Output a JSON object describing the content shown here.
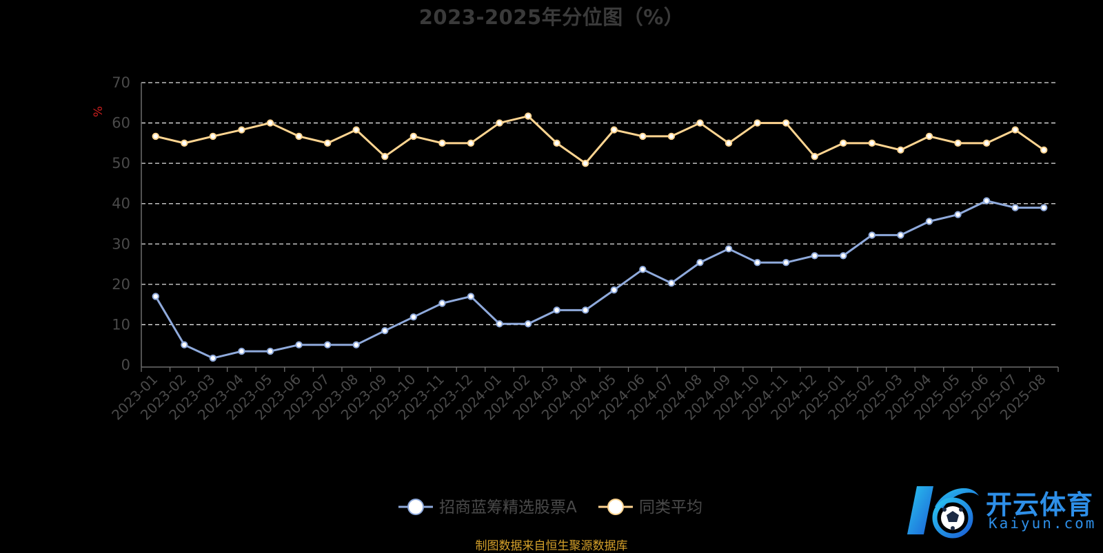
{
  "page": {
    "title": "2023-2025年分位图（%）",
    "source_note": "制图数据来自恒生聚源数据库"
  },
  "logo": {
    "text_cn": "开云体育",
    "text_en": "Kaiyun.com",
    "color": "#2e8fe8"
  },
  "chart_data": {
    "type": "line",
    "title": "2023-2025年分位图（%）",
    "ylabel": "%",
    "xlabel": "",
    "ylim": [
      0,
      70
    ],
    "yticks": [
      0,
      10,
      20,
      30,
      40,
      50,
      60,
      70
    ],
    "grid": true,
    "legend_position": "bottom-center",
    "x": [
      "2023-01",
      "2023-02",
      "2023-03",
      "2023-04",
      "2023-05",
      "2023-06",
      "2023-07",
      "2023-08",
      "2023-09",
      "2023-10",
      "2023-11",
      "2023-12",
      "2024-01",
      "2024-02",
      "2024-03",
      "2024-04",
      "2024-05",
      "2024-06",
      "2024-07",
      "2024-08",
      "2024-09",
      "2024-10",
      "2024-11",
      "2024-12",
      "2025-01",
      "2025-02",
      "2025-03",
      "2025-04",
      "2025-05",
      "2025-06",
      "2025-07",
      "2025-08"
    ],
    "series": [
      {
        "name": "招商蓝筹精选股票A",
        "color": "#8faadc",
        "values": [
          17,
          5,
          1.7,
          3.4,
          3.4,
          5,
          5,
          5,
          8.5,
          11.9,
          15.3,
          17,
          10.2,
          10.2,
          13.6,
          13.6,
          18.6,
          23.7,
          20.3,
          25.4,
          28.8,
          25.4,
          25.4,
          27.1,
          27.1,
          32.2,
          32.2,
          35.6,
          37.3,
          40.7,
          39,
          39
        ]
      },
      {
        "name": "同类平均",
        "color": "#ffd591",
        "values": [
          56.7,
          55,
          56.7,
          58.3,
          60,
          56.7,
          55,
          58.3,
          51.7,
          56.7,
          55,
          55,
          60,
          61.7,
          55,
          50,
          58.3,
          56.7,
          56.7,
          60,
          55,
          60,
          60,
          51.7,
          55,
          55,
          53.3,
          56.7,
          55,
          55,
          58.3,
          53.3
        ]
      }
    ]
  }
}
